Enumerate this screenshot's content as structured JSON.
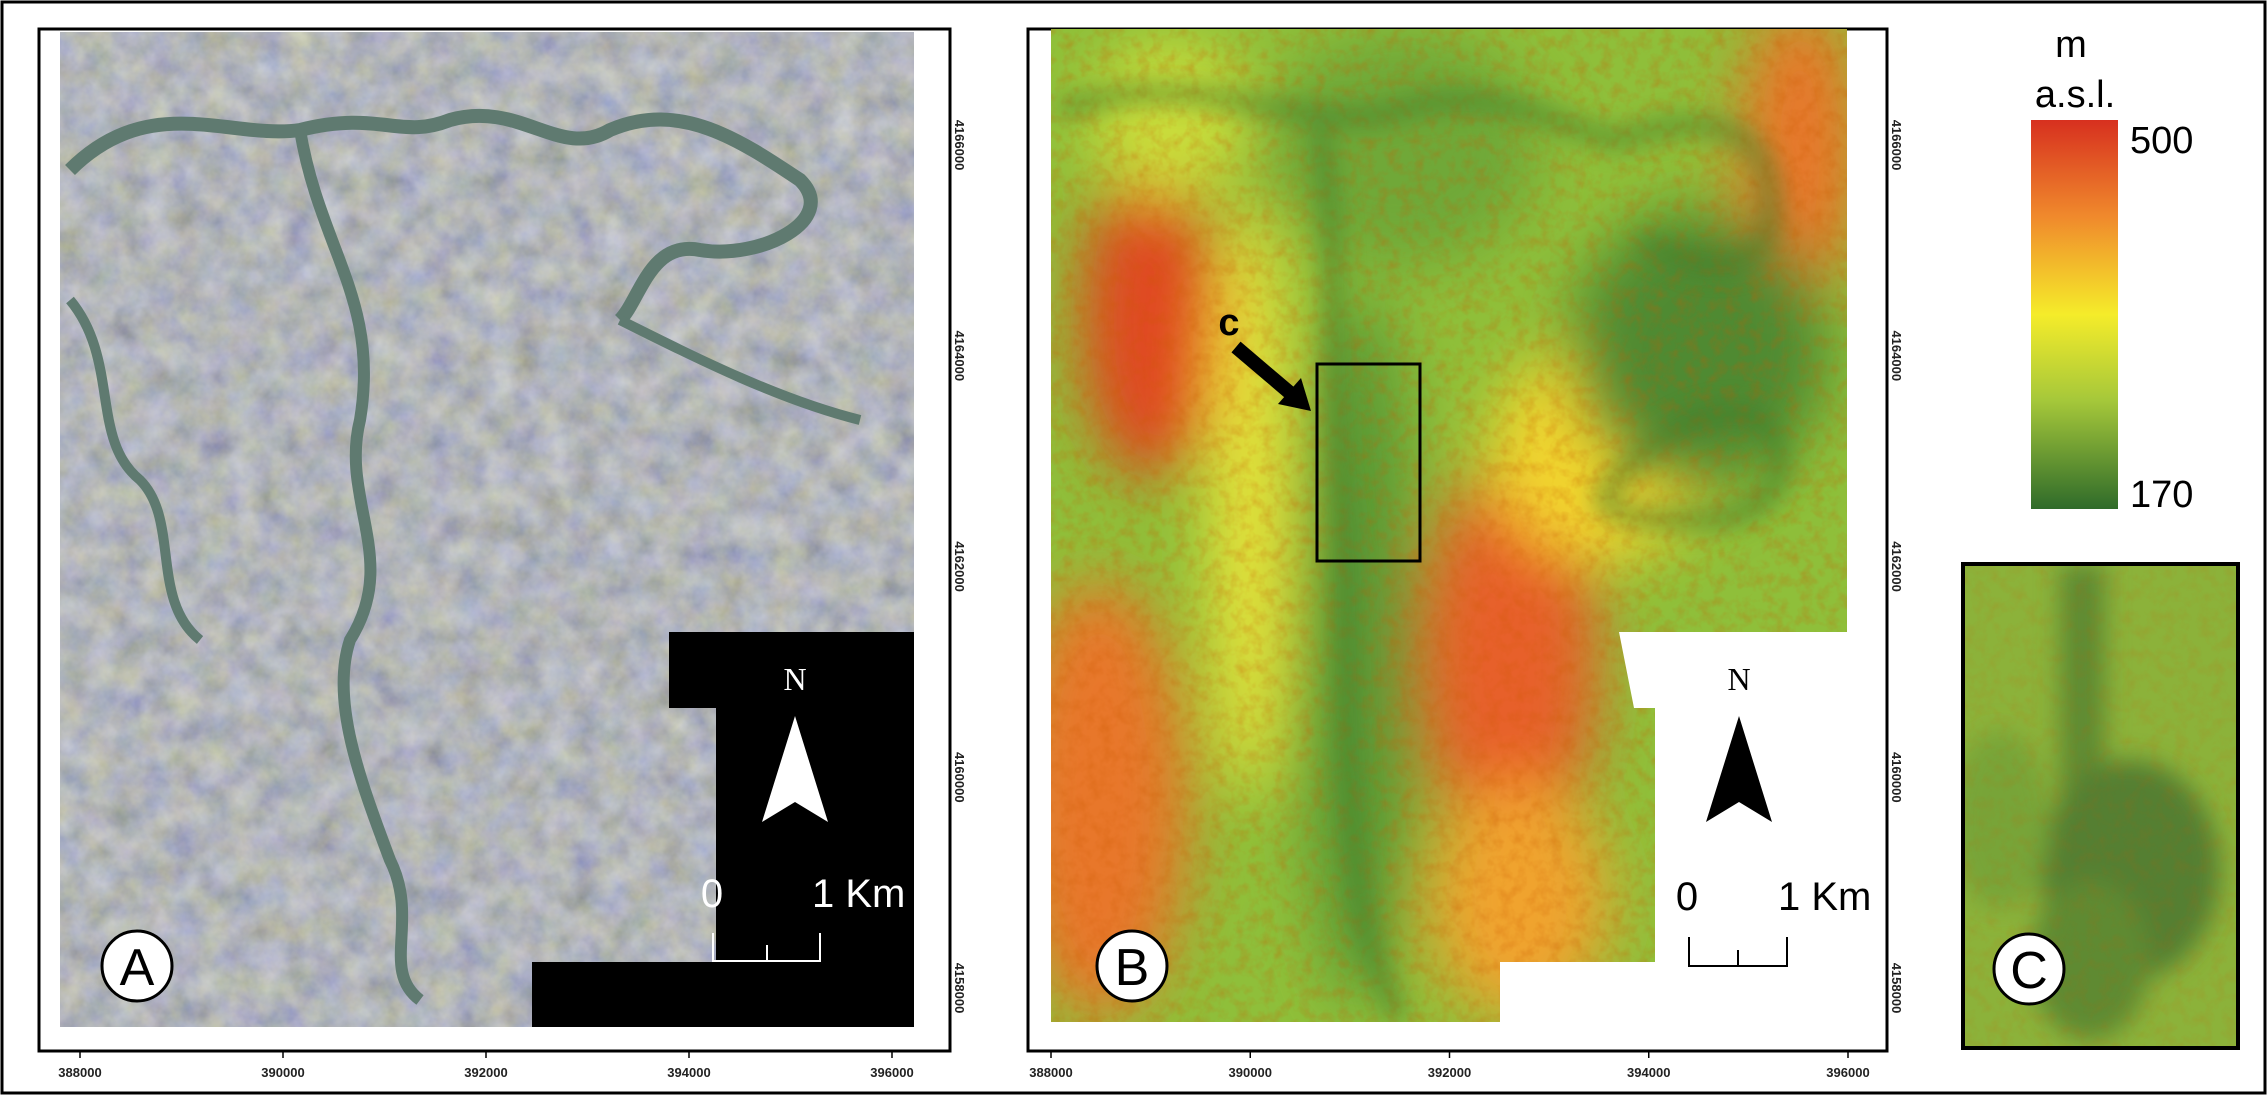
{
  "panels": [
    {
      "label": "A",
      "north": "N",
      "scale_bar": {
        "start": "0",
        "end": "1 Km"
      },
      "xticks": [
        388000,
        390000,
        392000,
        394000,
        396000
      ],
      "yticks": [
        4166000,
        4164000,
        4162000,
        4160000,
        4158000
      ]
    },
    {
      "label": "B",
      "north": "N",
      "scale_bar": {
        "start": "0",
        "end": "1 Km"
      },
      "xticks": [
        388000,
        390000,
        392000,
        394000,
        396000
      ],
      "yticks": [
        4166000,
        4164000,
        4162000,
        4160000,
        4158000
      ]
    },
    {
      "label": "C"
    }
  ],
  "callout": "c",
  "legend": {
    "unit": "m",
    "reference": "a.s.l.",
    "max": "500",
    "min": "170"
  }
}
